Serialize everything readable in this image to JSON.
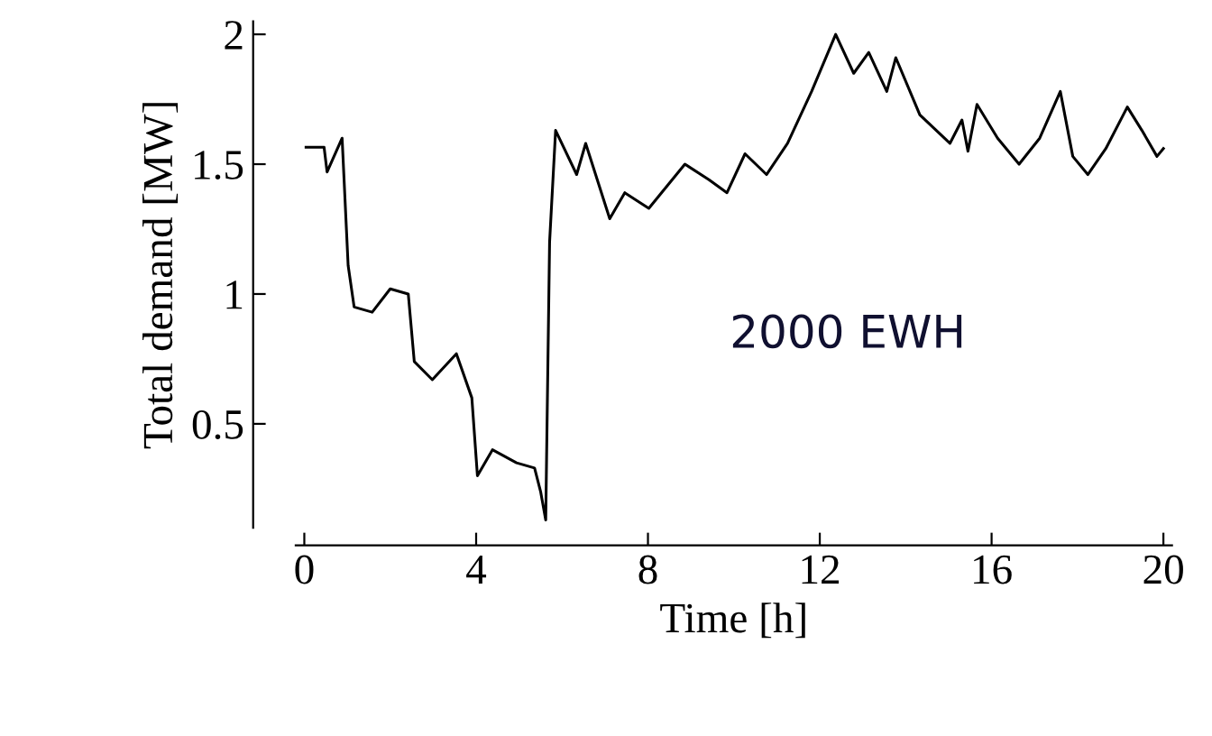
{
  "chart_data": {
    "type": "line",
    "xlabel": "Time [h]",
    "ylabel": "Total demand [MW]",
    "x": [
      0.04,
      0.46,
      0.53,
      0.88,
      1.02,
      1.16,
      1.58,
      2.0,
      2.42,
      2.56,
      2.98,
      3.54,
      3.9,
      4.03,
      4.38,
      4.94,
      5.36,
      5.5,
      5.62,
      5.71,
      5.85,
      6.34,
      6.55,
      7.11,
      7.46,
      8.02,
      8.86,
      9.42,
      9.84,
      10.26,
      10.76,
      11.25,
      11.81,
      12.37,
      12.79,
      13.14,
      13.56,
      13.77,
      14.33,
      15.03,
      15.31,
      15.45,
      15.66,
      16.14,
      16.64,
      17.12,
      17.6,
      17.89,
      18.24,
      18.66,
      19.16,
      19.5,
      19.85,
      20.0
    ],
    "series": [
      {
        "color": "#000000",
        "values": [
          1.565,
          1.565,
          1.47,
          1.6,
          1.11,
          0.95,
          0.93,
          1.02,
          1.0,
          0.74,
          0.67,
          0.77,
          0.6,
          0.3,
          0.4,
          0.35,
          0.33,
          0.24,
          0.13,
          1.2,
          1.63,
          1.46,
          1.58,
          1.29,
          1.39,
          1.33,
          1.5,
          1.44,
          1.39,
          1.54,
          1.46,
          1.58,
          1.78,
          2.0,
          1.85,
          1.93,
          1.78,
          1.91,
          1.69,
          1.58,
          1.67,
          1.55,
          1.73,
          1.6,
          1.5,
          1.6,
          1.78,
          1.53,
          1.46,
          1.56,
          1.72,
          1.63,
          1.53,
          1.56
        ]
      }
    ],
    "annotations": [
      "2000 EWH"
    ],
    "xlim": [
      -0.2,
      20.2
    ],
    "ylim": [
      0.1,
      2.05
    ],
    "xticks": [
      0,
      4,
      8,
      12,
      16,
      20
    ],
    "yticks": [
      0.5,
      1,
      1.5,
      2
    ],
    "grid": false,
    "legend": false,
    "line_style": "solid",
    "marker": "none"
  }
}
